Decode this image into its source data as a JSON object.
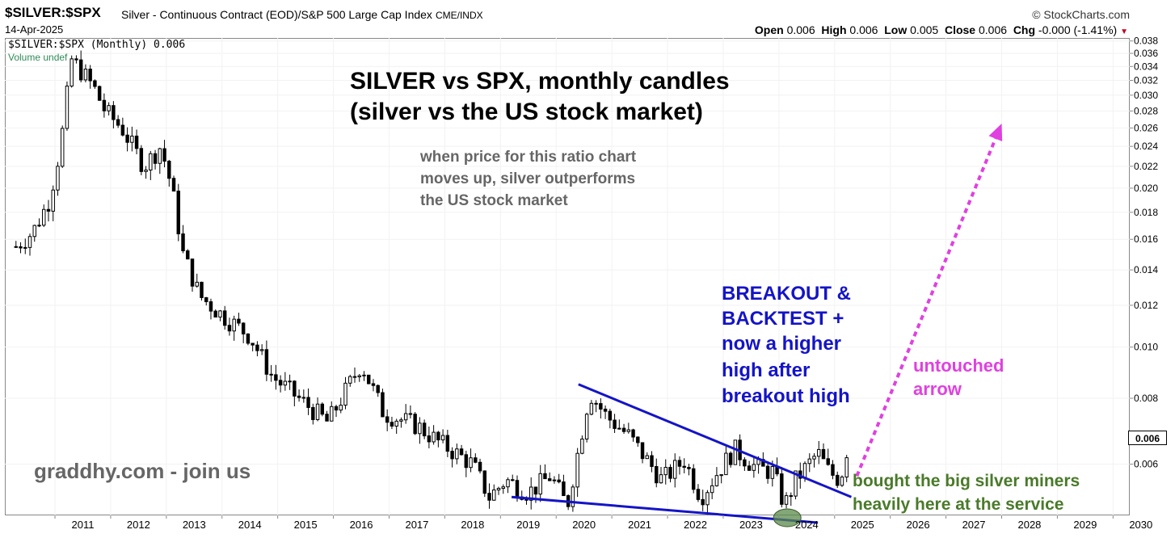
{
  "header": {
    "symbol": "$SILVER:$SPX",
    "description": "Silver - Continuous Contract (EOD)/S&P 500 Large Cap Index",
    "exchange": "CME/INDX",
    "brand": "© StockCharts.com",
    "date": "14-Apr-2025",
    "ohlc": {
      "open_label": "Open",
      "open": "0.006",
      "high_label": "High",
      "high": "0.006",
      "low_label": "Low",
      "low": "0.005",
      "close_label": "Close",
      "close": "0.006",
      "chg_label": "Chg",
      "chg": "-0.000 (-1.41%)",
      "chg_arrow": "▼"
    },
    "legend_series": "$SILVER:$SPX (Monthly) 0.006",
    "legend_volume": "Volume undef"
  },
  "annotations": {
    "title_line1": "SILVER vs SPX, monthly candles",
    "title_line2": "(silver vs the US stock market)",
    "note_line1": "when price for this ratio chart",
    "note_line2": "moves up, silver outperforms",
    "note_line3": "the US stock market",
    "breakout_line1": "BREAKOUT &",
    "breakout_line2": "BACKTEST +",
    "breakout_line3": "now a higher",
    "breakout_line4": "high after",
    "breakout_line5": "breakout high",
    "untouched_line1": "untouched",
    "untouched_line2": "arrow",
    "site": "graddhy.com - join us",
    "bought_line1": "bought the big silver miners",
    "bought_line2": "heavily here at the service"
  },
  "colors": {
    "trendline": "#1414c8",
    "arrow": "#e040e0",
    "highlight_circle": "#5a8a4a",
    "candle": "#000000"
  },
  "chart_data": {
    "type": "candlestick",
    "scale": "log",
    "ylim": [
      0.0048,
      0.0385
    ],
    "y_ticks": [
      "0.006",
      "0.008",
      "0.010",
      "0.012",
      "0.014",
      "0.016",
      "0.018",
      "0.020",
      "0.022",
      "0.024",
      "0.026",
      "0.028",
      "0.030",
      "0.032",
      "0.034",
      "0.036",
      "0.038"
    ],
    "x_ticks": [
      "2011",
      "2012",
      "2013",
      "2014",
      "2015",
      "2016",
      "2017",
      "2018",
      "2019",
      "2020",
      "2021",
      "2022",
      "2023",
      "2024",
      "2025",
      "2026",
      "2027",
      "2028",
      "2029",
      "2030"
    ],
    "last_value": "0.006",
    "candle_type": "monthly",
    "candle_anchors": [
      [
        2010.3,
        0.0155
      ],
      [
        2010.6,
        0.0165
      ],
      [
        2010.9,
        0.019
      ],
      [
        2011.1,
        0.024
      ],
      [
        2011.3,
        0.035
      ],
      [
        2011.5,
        0.033
      ],
      [
        2011.7,
        0.031
      ],
      [
        2011.9,
        0.028
      ],
      [
        2012.2,
        0.026
      ],
      [
        2012.6,
        0.022
      ],
      [
        2012.9,
        0.024
      ],
      [
        2013.1,
        0.02
      ],
      [
        2013.3,
        0.015
      ],
      [
        2013.6,
        0.0125
      ],
      [
        2014.0,
        0.0115
      ],
      [
        2014.5,
        0.0105
      ],
      [
        2014.9,
        0.0088
      ],
      [
        2015.5,
        0.0078
      ],
      [
        2015.9,
        0.0072
      ],
      [
        2016.5,
        0.0093
      ],
      [
        2016.9,
        0.0075
      ],
      [
        2017.5,
        0.0071
      ],
      [
        2017.9,
        0.0066
      ],
      [
        2018.5,
        0.006
      ],
      [
        2018.8,
        0.0052
      ],
      [
        2019.1,
        0.0056
      ],
      [
        2019.5,
        0.0053
      ],
      [
        2019.9,
        0.0057
      ],
      [
        2020.2,
        0.005
      ],
      [
        2020.6,
        0.0082
      ],
      [
        2020.9,
        0.0074
      ],
      [
        2021.3,
        0.0068
      ],
      [
        2021.9,
        0.0056
      ],
      [
        2022.3,
        0.0061
      ],
      [
        2022.6,
        0.0052
      ],
      [
        2022.9,
        0.0058
      ],
      [
        2023.2,
        0.0064
      ],
      [
        2023.6,
        0.0059
      ],
      [
        2023.9,
        0.0058
      ],
      [
        2024.1,
        0.005
      ],
      [
        2024.3,
        0.0056
      ],
      [
        2024.7,
        0.0063
      ],
      [
        2024.9,
        0.0058
      ],
      [
        2025.1,
        0.0056
      ],
      [
        2025.25,
        0.0066
      ]
    ],
    "trendlines": {
      "upper": [
        [
          2020.4,
          0.0085
        ],
        [
          2025.3,
          0.0052
        ]
      ],
      "lower": [
        [
          2019.2,
          0.0052
        ],
        [
          2024.7,
          0.00465
        ]
      ]
    },
    "projection_arrow": [
      [
        2025.4,
        0.0057
      ],
      [
        2028.0,
        0.0265
      ]
    ]
  }
}
